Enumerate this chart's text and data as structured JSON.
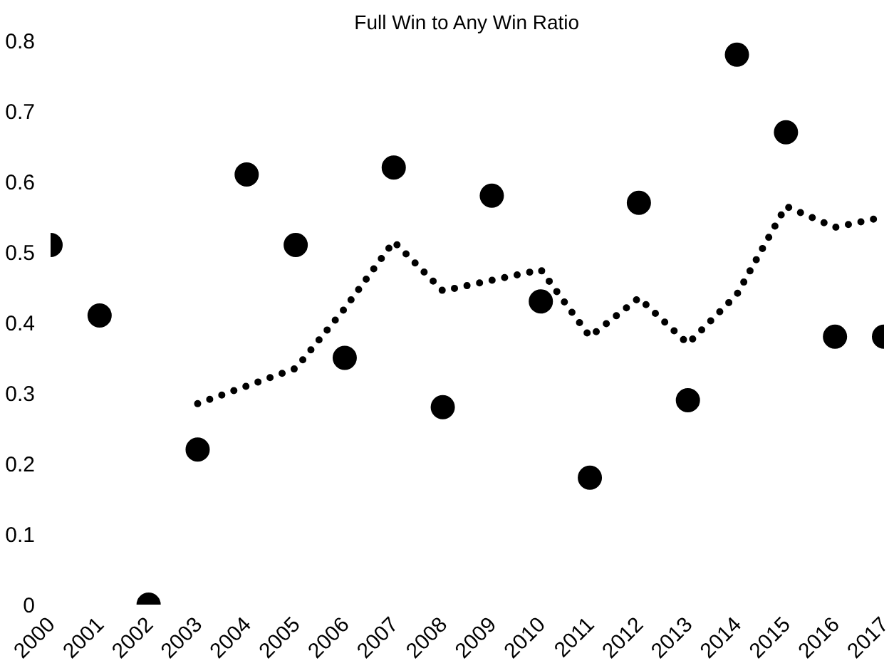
{
  "chart_data": {
    "type": "scatter",
    "title": "Full Win to Any Win Ratio",
    "x": [
      2000,
      2001,
      2002,
      2003,
      2004,
      2005,
      2006,
      2007,
      2008,
      2009,
      2010,
      2011,
      2012,
      2013,
      2014,
      2015,
      2016,
      2017
    ],
    "series": [
      {
        "color": "#000000",
        "marker": "circle",
        "values": [
          0.51,
          0.41,
          0.0,
          0.22,
          0.61,
          0.51,
          0.35,
          0.62,
          0.28,
          0.58,
          0.43,
          0.18,
          0.57,
          0.29,
          0.78,
          0.67,
          0.38,
          0.38
        ]
      },
      {
        "type": "line",
        "color": "#000000",
        "line_style": "dotted",
        "x": [
          2003,
          2004,
          2005,
          2006,
          2007,
          2008,
          2009,
          2010,
          2011,
          2012,
          2013,
          2014,
          2015,
          2016,
          2017
        ],
        "values": [
          0.285,
          0.31,
          0.335,
          0.42,
          0.515,
          0.445,
          0.46,
          0.475,
          0.38,
          0.435,
          0.37,
          0.44,
          0.565,
          0.535,
          0.55
        ]
      }
    ],
    "xlim": [
      2000,
      2017
    ],
    "xticks": [
      2000,
      2001,
      2002,
      2003,
      2004,
      2005,
      2006,
      2007,
      2008,
      2009,
      2010,
      2011,
      2012,
      2013,
      2014,
      2015,
      2016,
      2017
    ],
    "ylim": [
      0,
      0.8
    ],
    "yticks": [
      0,
      0.1,
      0.2,
      0.3,
      0.4,
      0.5,
      0.6,
      0.7,
      0.8
    ],
    "grid": false
  }
}
